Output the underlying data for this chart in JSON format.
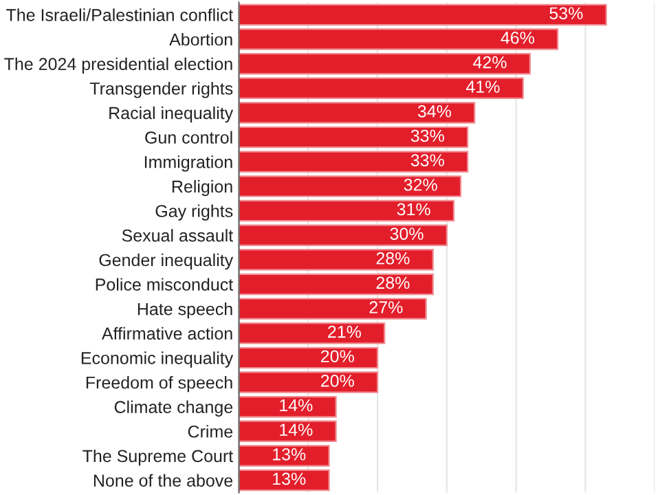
{
  "chart_data": {
    "type": "bar",
    "orientation": "horizontal",
    "categories": [
      "The Israeli/Palestinian conflict",
      "Abortion",
      "The 2024 presidential election",
      "Transgender rights",
      "Racial inequality",
      "Gun control",
      "Immigration",
      "Religion",
      "Gay rights",
      "Sexual assault",
      "Gender inequality",
      "Police misconduct",
      "Hate speech",
      "Affirmative action",
      "Economic inequality",
      "Freedom of speech",
      "Climate change",
      "Crime",
      "The Supreme Court",
      "None of the above"
    ],
    "values": [
      53,
      46,
      42,
      41,
      34,
      33,
      33,
      32,
      31,
      30,
      28,
      28,
      27,
      21,
      20,
      20,
      14,
      14,
      13,
      13
    ],
    "value_labels": [
      "53%",
      "46%",
      "42%",
      "41%",
      "34%",
      "33%",
      "33%",
      "32%",
      "31%",
      "30%",
      "28%",
      "28%",
      "27%",
      "21%",
      "20%",
      "20%",
      "14%",
      "14%",
      "13%",
      "13%"
    ],
    "color": "#e31e2b",
    "xlim": [
      0,
      60
    ],
    "xticks": [
      {
        "value": 0,
        "label": null
      },
      {
        "value": 10,
        "label": null
      },
      {
        "value": 20,
        "label": null
      },
      {
        "value": 30,
        "label": null
      },
      {
        "value": 40,
        "label": null
      },
      {
        "value": 50,
        "label": null
      },
      {
        "value": 60,
        "label": null
      }
    ],
    "grid": "x",
    "tick_labels": "y"
  }
}
